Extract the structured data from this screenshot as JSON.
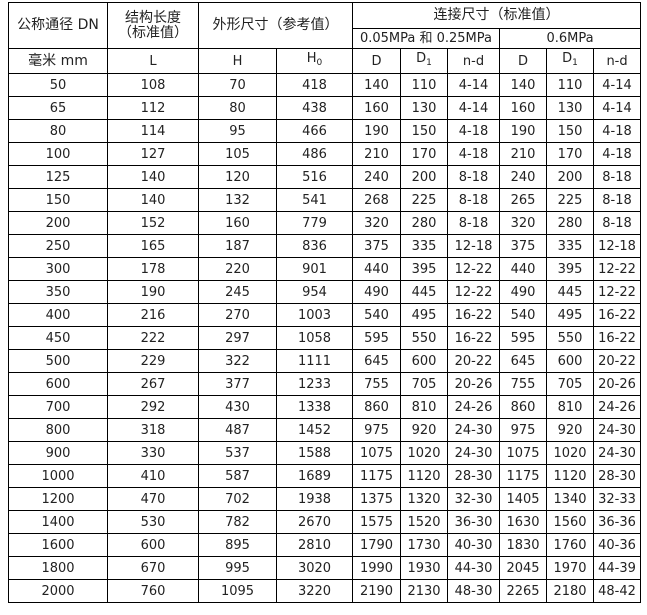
{
  "header": {
    "dn": "公称通径 DN",
    "length_line1": "结构长度",
    "length_line2": "（标准值）",
    "outline": "外形尺寸（参考值）",
    "connection": "连接尺寸（标准值）",
    "pressure_low": "0.05MPa 和 0.25MPa",
    "pressure_high": "0.6MPa",
    "unit": "毫米 mm",
    "L": "L",
    "H": "H",
    "H0": "H",
    "H0_sub": "0",
    "D": "D",
    "D1": "D",
    "D1_sub": "1",
    "nd": "n-d"
  },
  "rows": [
    [
      "50",
      "108",
      "70",
      "418",
      "140",
      "110",
      "4-14",
      "140",
      "110",
      "4-14"
    ],
    [
      "65",
      "112",
      "80",
      "438",
      "160",
      "130",
      "4-14",
      "160",
      "130",
      "4-14"
    ],
    [
      "80",
      "114",
      "95",
      "466",
      "190",
      "150",
      "4-18",
      "190",
      "150",
      "4-18"
    ],
    [
      "100",
      "127",
      "105",
      "486",
      "210",
      "170",
      "4-18",
      "210",
      "170",
      "4-18"
    ],
    [
      "125",
      "140",
      "120",
      "516",
      "240",
      "200",
      "8-18",
      "240",
      "200",
      "8-18"
    ],
    [
      "150",
      "140",
      "132",
      "541",
      "268",
      "225",
      "8-18",
      "265",
      "225",
      "8-18"
    ],
    [
      "200",
      "152",
      "160",
      "779",
      "320",
      "280",
      "8-18",
      "320",
      "280",
      "8-18"
    ],
    [
      "250",
      "165",
      "187",
      "836",
      "375",
      "335",
      "12-18",
      "375",
      "335",
      "12-18"
    ],
    [
      "300",
      "178",
      "220",
      "901",
      "440",
      "395",
      "12-22",
      "440",
      "395",
      "12-22"
    ],
    [
      "350",
      "190",
      "245",
      "954",
      "490",
      "445",
      "12-22",
      "490",
      "445",
      "12-22"
    ],
    [
      "400",
      "216",
      "270",
      "1003",
      "540",
      "495",
      "16-22",
      "540",
      "495",
      "16-22"
    ],
    [
      "450",
      "222",
      "297",
      "1058",
      "595",
      "550",
      "16-22",
      "595",
      "550",
      "16-22"
    ],
    [
      "500",
      "229",
      "322",
      "1111",
      "645",
      "600",
      "20-22",
      "645",
      "600",
      "20-22"
    ],
    [
      "600",
      "267",
      "377",
      "1233",
      "755",
      "705",
      "20-26",
      "755",
      "705",
      "20-26"
    ],
    [
      "700",
      "292",
      "430",
      "1338",
      "860",
      "810",
      "24-26",
      "860",
      "810",
      "24-26"
    ],
    [
      "800",
      "318",
      "487",
      "1452",
      "975",
      "920",
      "24-30",
      "975",
      "920",
      "24-30"
    ],
    [
      "900",
      "330",
      "537",
      "1588",
      "1075",
      "1020",
      "24-30",
      "1075",
      "1020",
      "24-30"
    ],
    [
      "1000",
      "410",
      "587",
      "1689",
      "1175",
      "1120",
      "28-30",
      "1175",
      "1120",
      "28-30"
    ],
    [
      "1200",
      "470",
      "702",
      "1938",
      "1375",
      "1320",
      "32-30",
      "1405",
      "1340",
      "32-33"
    ],
    [
      "1400",
      "530",
      "782",
      "2670",
      "1575",
      "1520",
      "36-30",
      "1630",
      "1560",
      "36-36"
    ],
    [
      "1600",
      "600",
      "895",
      "2810",
      "1790",
      "1730",
      "40-30",
      "1830",
      "1760",
      "40-36"
    ],
    [
      "1800",
      "670",
      "995",
      "3020",
      "1990",
      "1930",
      "44-30",
      "2045",
      "1970",
      "44-39"
    ],
    [
      "2000",
      "760",
      "1095",
      "3220",
      "2190",
      "2130",
      "48-30",
      "2265",
      "2180",
      "48-42"
    ]
  ]
}
